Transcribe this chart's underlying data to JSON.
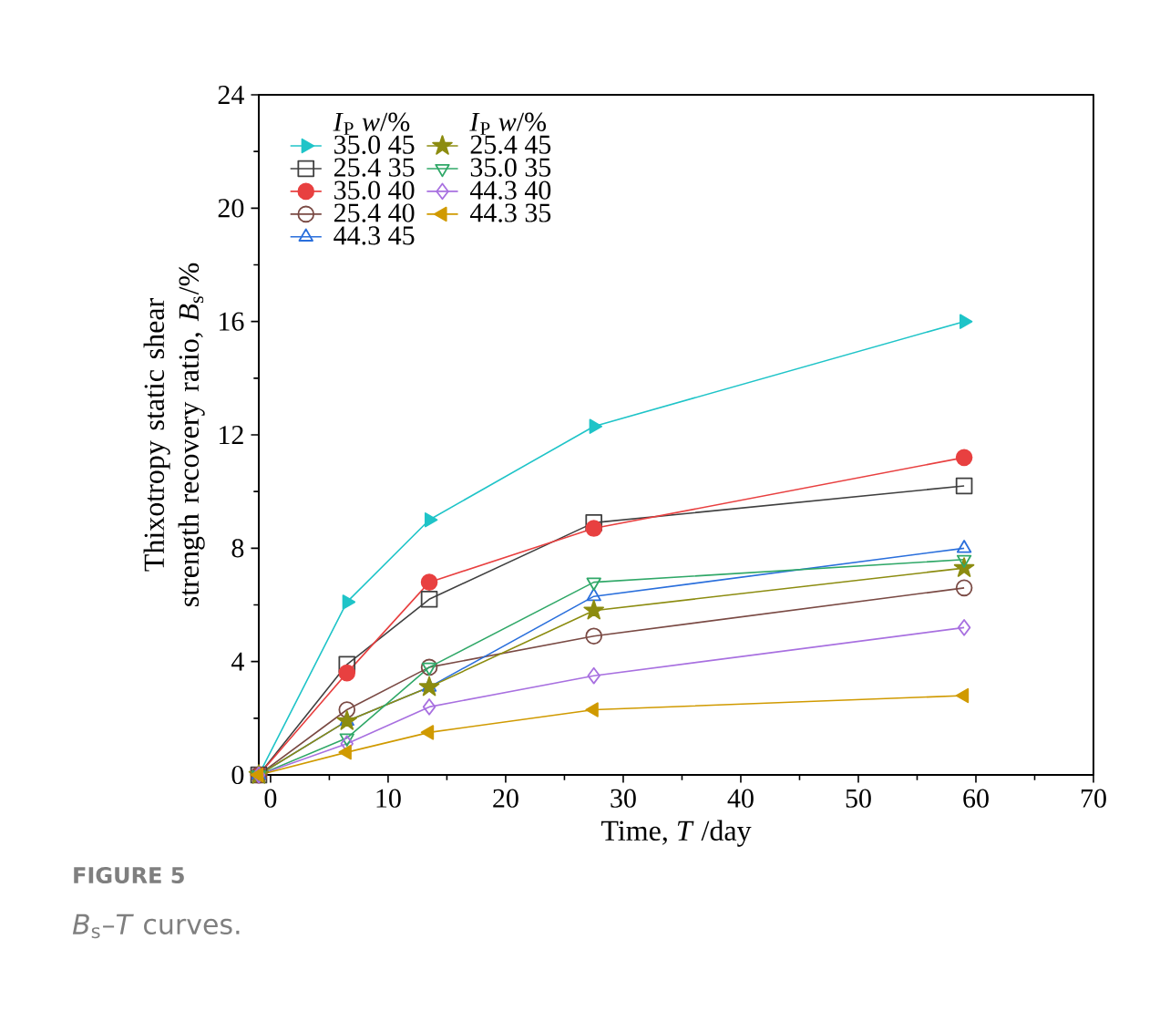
{
  "chart_data": {
    "type": "line",
    "xlabel": "Time, *T* /day",
    "ylabel": "Thixotropy static shear strength recovery ratio, *B*$_{s}$/%",
    "legend_title": "*I*$_{P}$   *w*/%",
    "legend": "top left",
    "x": [
      -1,
      6.5,
      13.5,
      27.5,
      59
    ],
    "xlim": [
      -1,
      70
    ],
    "xticks": [
      0,
      10,
      20,
      30,
      40,
      50,
      60,
      70
    ],
    "ylim": [
      0,
      24
    ],
    "yticks": [
      0,
      4,
      8,
      12,
      16,
      20,
      24
    ],
    "grid": false,
    "series": [
      {
        "name": "35.0   45",
        "color": "#1fc4c8",
        "marker": "triangle",
        "values": [
          0,
          6.1,
          9.0,
          12.3,
          16.0
        ]
      },
      {
        "name": "25.4   35",
        "color": "#404040",
        "marker": "square",
        "values": [
          0,
          3.9,
          6.2,
          8.9,
          10.2
        ]
      },
      {
        "name": "35.0   40",
        "color": "#e84040",
        "marker": "circle",
        "values": [
          0,
          3.6,
          6.8,
          8.7,
          11.2
        ]
      },
      {
        "name": "25.4   40",
        "color": "#7a4a44",
        "marker": "circle",
        "values": [
          0,
          2.3,
          3.8,
          4.9,
          6.6
        ]
      },
      {
        "name": "44.3   45",
        "color": "#2a6fdc",
        "marker": "triangle",
        "values": [
          0,
          1.9,
          3.1,
          6.3,
          8.0
        ]
      },
      {
        "name": "25.4   45",
        "color": "#8c8c10",
        "marker": "star",
        "values": [
          0,
          1.9,
          3.1,
          5.8,
          7.3
        ]
      },
      {
        "name": "35.0   35",
        "color": "#30a868",
        "marker": "triangle",
        "values": [
          0,
          1.3,
          3.8,
          6.8,
          7.6
        ]
      },
      {
        "name": "44.3   40",
        "color": "#a870e0",
        "marker": "diamond",
        "values": [
          0,
          1.1,
          2.4,
          3.5,
          5.2
        ]
      },
      {
        "name": "44.3   35",
        "color": "#d09a00",
        "marker": "triangle",
        "values": [
          0,
          0.8,
          1.5,
          2.3,
          2.8
        ]
      }
    ],
    "annotations": [
      "**FIGURE 5**",
      "*B*$_{s}$–*T* curves."
    ]
  }
}
